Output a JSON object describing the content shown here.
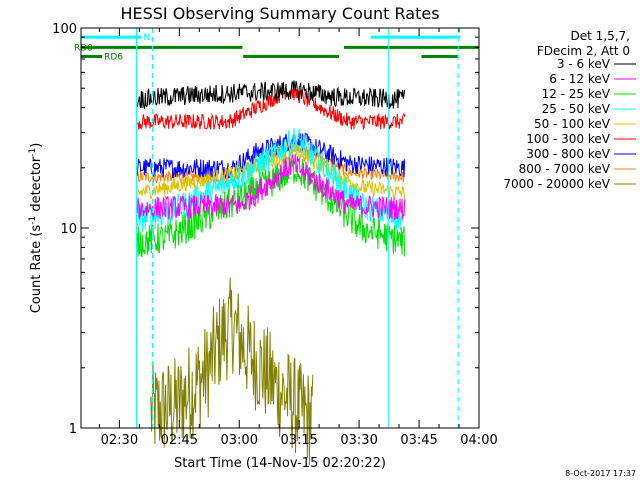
{
  "chart_data": {
    "type": "line",
    "title": "HESSI Observing Summary Count Rates",
    "xlabel": "Start Time (14-Nov-15 02:20:22)",
    "ylabel_main": "Count Rate (s",
    "ylabel_sup1": "-1",
    "ylabel_mid": " detector",
    "ylabel_sup2": "-1",
    "ylabel_end": ")",
    "yscale": "log",
    "ylim": [
      1,
      100
    ],
    "xlim_minutes": [
      0,
      99.6
    ],
    "x_ticks": [
      {
        "label": "02:30",
        "t": 9.6
      },
      {
        "label": "02:45",
        "t": 24.6
      },
      {
        "label": "03:00",
        "t": 39.6
      },
      {
        "label": "03:15",
        "t": 54.6
      },
      {
        "label": "03:30",
        "t": 69.6
      },
      {
        "label": "03:45",
        "t": 84.6
      },
      {
        "label": "04:00",
        "t": 99.6
      }
    ],
    "y_ticks": [
      {
        "label": "1",
        "v": 1
      },
      {
        "label": "10",
        "v": 10
      },
      {
        "label": "100",
        "v": 100
      }
    ],
    "legend_header": [
      "Det 1,5,7,",
      "FDecim 2, Att 0"
    ],
    "series": [
      {
        "name": "3 - 6 keV",
        "color": "#000000",
        "segments": [
          [
            14.1,
            44,
            27,
            46,
            55,
            49,
            64,
            45,
            81,
            44
          ]
        ],
        "noise": 0.05
      },
      {
        "name": "6 - 12 keV",
        "color": "#ff00ff",
        "segments": [
          [
            14.1,
            12.5,
            40,
            13,
            53,
            21,
            67,
            13,
            81,
            12.5
          ]
        ],
        "noise": 0.06
      },
      {
        "name": "12 - 25 keV",
        "color": "#00e000",
        "segments": [
          [
            14.1,
            8.5,
            22,
            9,
            40,
            14,
            54,
            20,
            70,
            10,
            81,
            8.5
          ]
        ],
        "noise": 0.08
      },
      {
        "name": "25 - 50 keV",
        "color": "#00ffff",
        "segments": [
          [
            14.1,
            11,
            22,
            12,
            40,
            18,
            54,
            28,
            70,
            13,
            81,
            11
          ]
        ],
        "noise": 0.07
      },
      {
        "name": "50 - 100 keV",
        "color": "#e0c000",
        "segments": [
          [
            14.1,
            15,
            22,
            16,
            40,
            19,
            54,
            24,
            70,
            16,
            81,
            15
          ]
        ],
        "noise": 0.04
      },
      {
        "name": "100 - 300 keV",
        "color": "#ff0000",
        "segments": [
          [
            14.1,
            34,
            37,
            34,
            44,
            40,
            52,
            49,
            62,
            38,
            67,
            34,
            81,
            34
          ]
        ],
        "noise": 0.04
      },
      {
        "name": "300 - 800 keV",
        "color": "#0000ff",
        "segments": [
          [
            14.1,
            20,
            38,
            20,
            44,
            24,
            54,
            28,
            67,
            21,
            81,
            20
          ]
        ],
        "noise": 0.05
      },
      {
        "name": "800 - 7000 keV",
        "color": "#ff8000",
        "segments": [
          [
            14.1,
            18,
            38,
            18,
            44,
            22,
            54,
            26,
            67,
            19,
            81,
            18
          ]
        ],
        "noise": 0.03
      },
      {
        "name": "7000 - 20000 keV",
        "color": "#808000",
        "segments": [
          [
            17.5,
            1.2,
            24,
            1.3,
            31.5,
            1.9,
            35,
            2.8,
            38,
            3.3,
            41,
            2.5,
            45,
            2.0,
            49,
            1.6,
            52,
            1.4,
            55,
            1.2,
            58,
            1.1
          ]
        ],
        "noise": 0.25
      }
    ],
    "attenuator_flags": [
      {
        "label": "N",
        "color": "#00ffff",
        "level": 90,
        "ranges": [
          [
            0,
            15.1
          ],
          [
            72.5,
            94.9
          ]
        ]
      },
      {
        "label": "RD0",
        "color": "#008000",
        "level": 80,
        "ranges": [
          [
            0,
            40.4
          ],
          [
            65.8,
            99.6
          ]
        ]
      },
      {
        "label": "RD6",
        "color": "#008000",
        "level": 72,
        "ranges": [
          [
            0,
            5.3
          ],
          [
            40.6,
            64.6
          ],
          [
            85.2,
            94.3
          ]
        ]
      }
    ],
    "marker_lines_solid": [
      13.9,
      76.9
    ],
    "marker_lines_dashed": [
      17.9,
      94.4
    ],
    "grid": false,
    "legend_position": "right"
  },
  "footer": {
    "date_stamp": "8-Oct-2017 17:37"
  }
}
